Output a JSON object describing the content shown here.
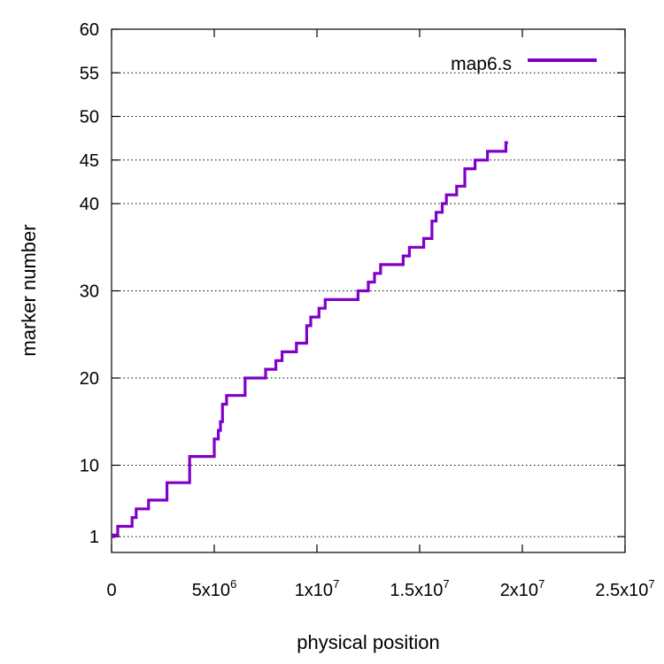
{
  "chart_data": {
    "type": "line",
    "xlabel": "physical position",
    "ylabel": "marker number",
    "xlim": [
      0,
      25000000
    ],
    "ylim": [
      0,
      60
    ],
    "grid": "horizontal dotted lines at y ticks",
    "legend_position": "top-right",
    "x_ticks": [
      {
        "value": 0,
        "base": "0",
        "exp": ""
      },
      {
        "value": 5000000,
        "base": "5x10",
        "exp": "6"
      },
      {
        "value": 10000000,
        "base": "1x10",
        "exp": "7"
      },
      {
        "value": 15000000,
        "base": "1.5x10",
        "exp": "7"
      },
      {
        "value": 20000000,
        "base": "2x10",
        "exp": "7"
      },
      {
        "value": 25000000,
        "base": "2.5x10",
        "exp": "7"
      }
    ],
    "y_ticks": [
      {
        "value": 1,
        "label": "1"
      },
      {
        "value": 10,
        "label": "10"
      },
      {
        "value": 20,
        "label": "20"
      },
      {
        "value": 30,
        "label": "30"
      },
      {
        "value": 40,
        "label": "40"
      },
      {
        "value": 45,
        "label": "45"
      },
      {
        "value": 50,
        "label": "50"
      },
      {
        "value": 55,
        "label": "55"
      },
      {
        "value": 60,
        "label": "60"
      }
    ],
    "series": [
      {
        "name": "map6.s",
        "color": "#8000c8",
        "step": true,
        "points": [
          [
            0,
            1
          ],
          [
            100000,
            2
          ],
          [
            300000,
            3
          ],
          [
            1000000,
            4
          ],
          [
            1200000,
            5
          ],
          [
            1800000,
            6
          ],
          [
            2700000,
            8
          ],
          [
            3800000,
            11
          ],
          [
            5000000,
            13
          ],
          [
            5200000,
            14
          ],
          [
            5300000,
            15
          ],
          [
            5400000,
            17
          ],
          [
            5600000,
            18
          ],
          [
            6500000,
            20
          ],
          [
            7500000,
            21
          ],
          [
            8000000,
            22
          ],
          [
            8300000,
            23
          ],
          [
            9000000,
            24
          ],
          [
            9500000,
            26
          ],
          [
            9700000,
            27
          ],
          [
            10100000,
            28
          ],
          [
            10400000,
            29
          ],
          [
            12000000,
            30
          ],
          [
            12500000,
            31
          ],
          [
            12800000,
            32
          ],
          [
            13100000,
            33
          ],
          [
            14200000,
            34
          ],
          [
            14500000,
            35
          ],
          [
            15200000,
            36
          ],
          [
            15600000,
            38
          ],
          [
            15800000,
            39
          ],
          [
            16100000,
            40
          ],
          [
            16300000,
            41
          ],
          [
            16800000,
            42
          ],
          [
            17200000,
            44
          ],
          [
            17700000,
            45
          ],
          [
            18300000,
            46
          ],
          [
            19200000,
            47
          ]
        ],
        "end_x": 19300000
      }
    ]
  }
}
